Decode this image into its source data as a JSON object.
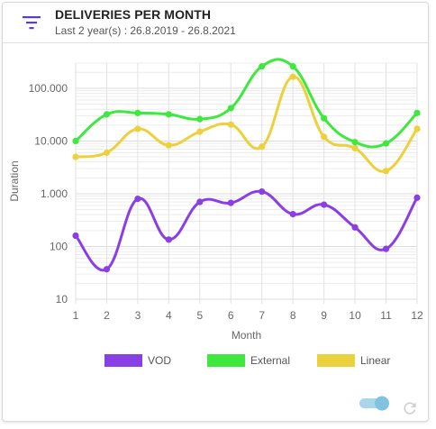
{
  "header": {
    "title": "DELIVERIES PER MONTH",
    "subtitle": "Last 2 year(s) : 26.8.2019 - 26.8.2021",
    "filter_icon": "filter-list-icon"
  },
  "footer": {
    "toggle_icon": "toggle-switch-icon",
    "refresh_icon": "refresh-icon"
  },
  "chart_data": {
    "type": "line",
    "xlabel": "Month",
    "ylabel": "Duration",
    "yscale": "log",
    "ylim": [
      10,
      300000
    ],
    "x": [
      1,
      2,
      3,
      4,
      5,
      6,
      7,
      8,
      9,
      10,
      11,
      12
    ],
    "x_tick_labels": [
      "1",
      "2",
      "3",
      "4",
      "5",
      "6",
      "7",
      "8",
      "9",
      "10",
      "11",
      "12"
    ],
    "y_ticks": [
      10,
      100,
      1000,
      10000,
      100000
    ],
    "y_tick_labels": [
      "10",
      "100",
      "1.000",
      "10.000",
      "100.000"
    ],
    "grid": true,
    "legend_position": "bottom",
    "series": [
      {
        "name": "VOD",
        "color": "#8a3ee6",
        "values": [
          160,
          37,
          800,
          135,
          700,
          670,
          1100,
          410,
          620,
          230,
          90,
          840
        ]
      },
      {
        "name": "External",
        "color": "#3ee83e",
        "values": [
          10000,
          32000,
          34000,
          32000,
          26000,
          42000,
          260000,
          260000,
          27000,
          9500,
          9000,
          34000
        ]
      },
      {
        "name": "Linear",
        "color": "#ecd03c",
        "values": [
          5000,
          6000,
          17000,
          8300,
          15000,
          20500,
          7800,
          165000,
          12000,
          7300,
          2700,
          17000
        ]
      }
    ]
  }
}
